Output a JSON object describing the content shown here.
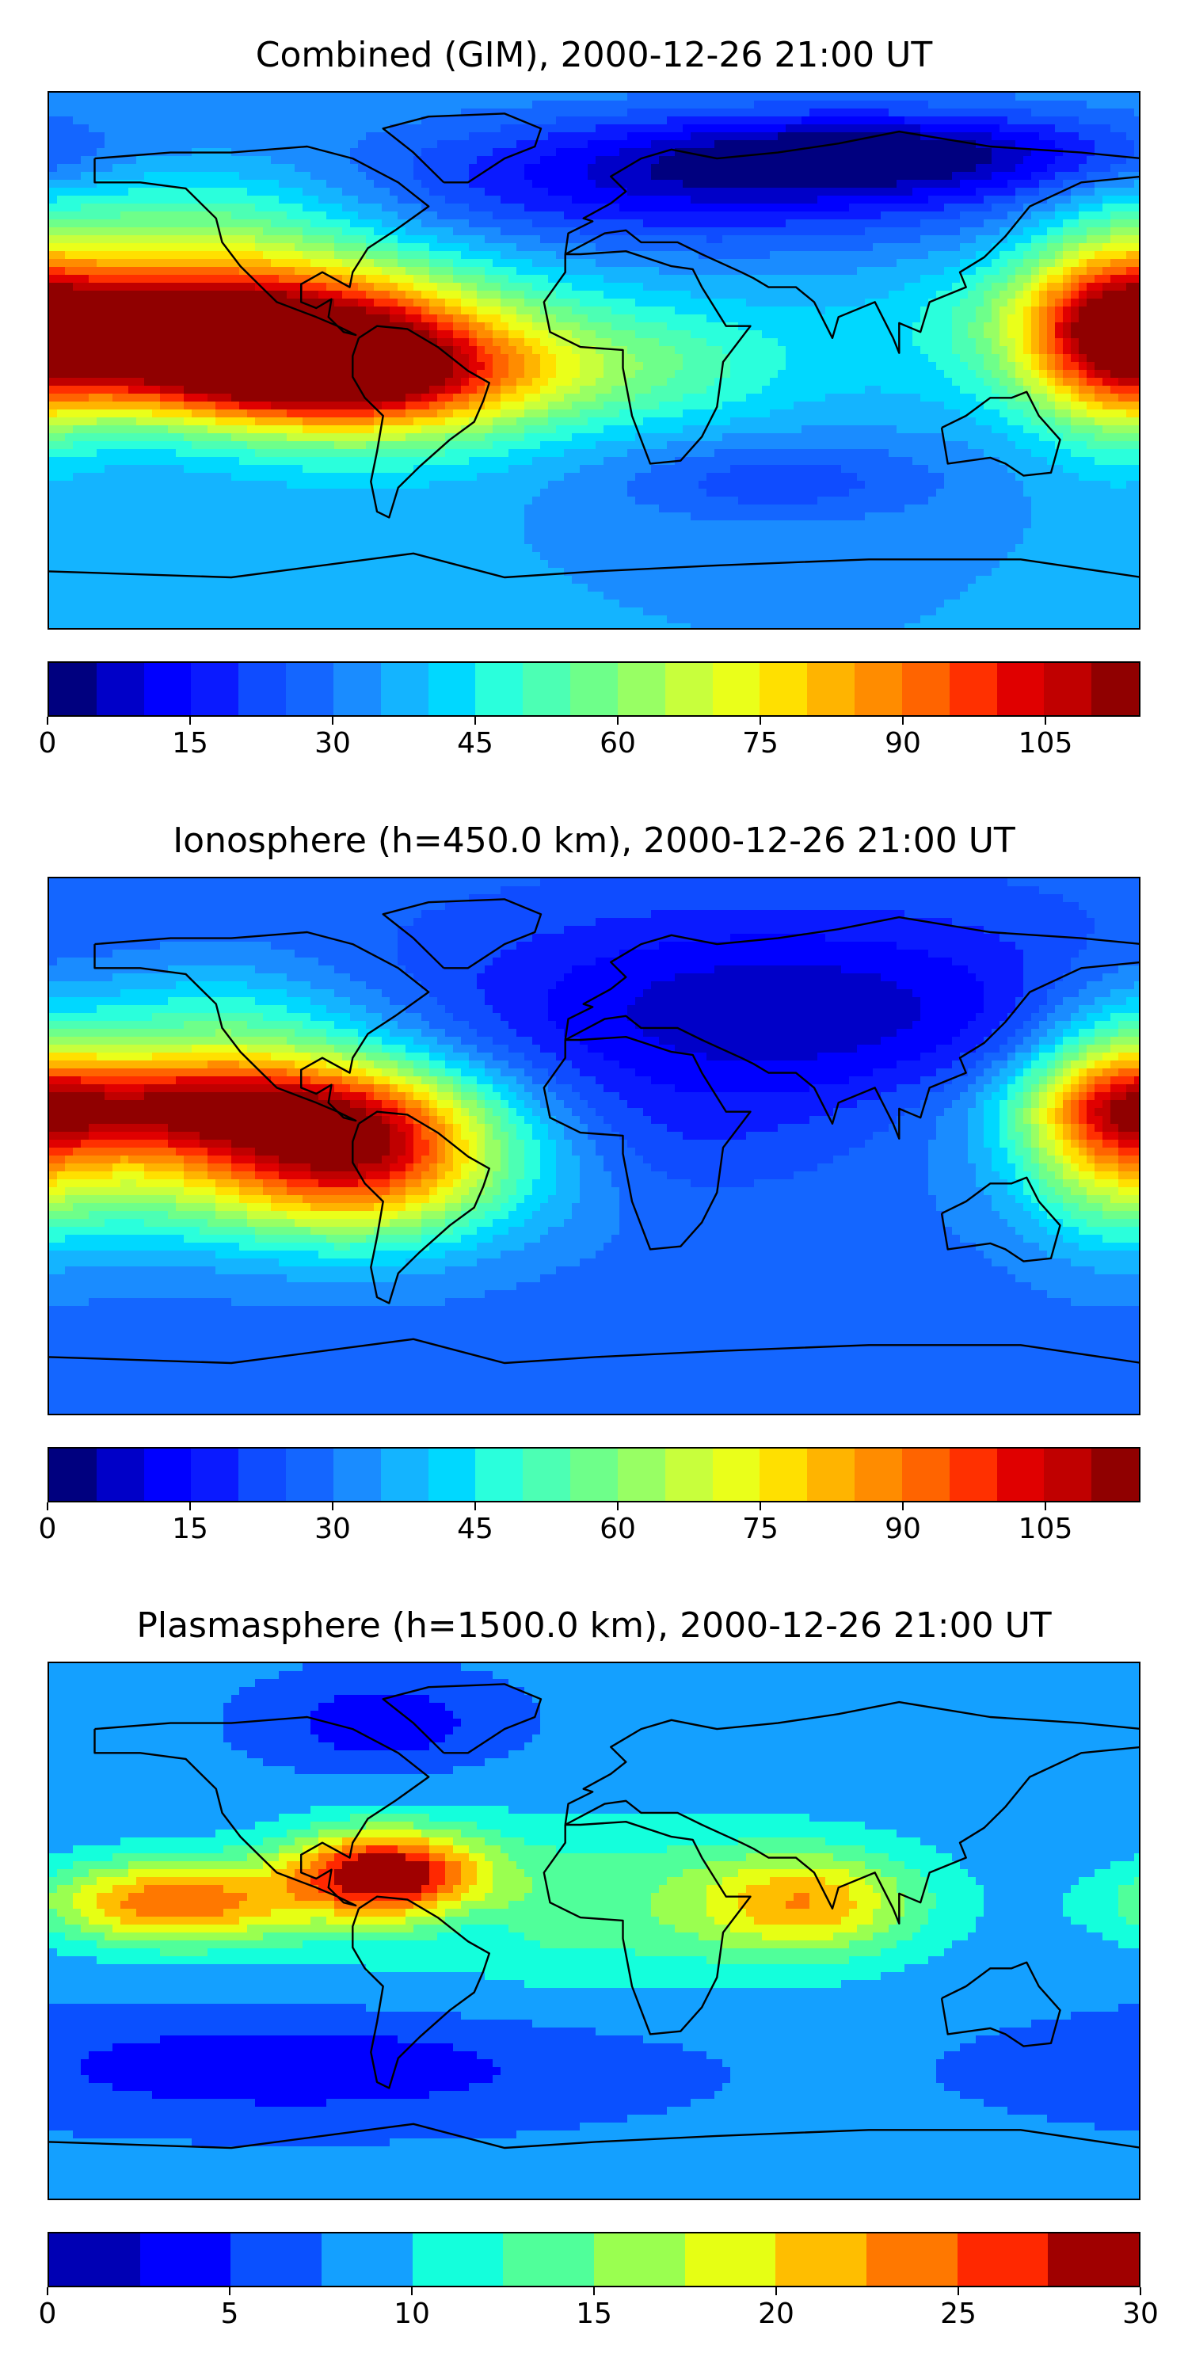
{
  "panels": [
    {
      "id": "combined",
      "title": "Combined (GIM), 2000-12-26 21:00 UT",
      "colorbar": {
        "min": 0,
        "max": 115,
        "step": 5,
        "tick_values": [
          0,
          15,
          30,
          45,
          60,
          75,
          90,
          105
        ],
        "tick_labels": [
          "0",
          "15",
          "30",
          "45",
          "60",
          "75",
          "90",
          "105"
        ],
        "colors": [
          "#00007f",
          "#0000c8",
          "#0000ff",
          "#0a1aff",
          "#0f4cff",
          "#1466ff",
          "#1a8cff",
          "#14b4ff",
          "#00d8ff",
          "#2affdc",
          "#4cffb4",
          "#6eff8a",
          "#98ff64",
          "#c8ff3c",
          "#eaff1a",
          "#ffe000",
          "#ffb400",
          "#ff8c00",
          "#ff6400",
          "#ff3000",
          "#e00000",
          "#c00000",
          "#900000"
        ]
      },
      "field": {
        "background_value": 35,
        "blobs": [
          {
            "lon": -140,
            "lat": 15,
            "value": 105,
            "spread_lon": 55,
            "spread_lat": 14
          },
          {
            "lon": -110,
            "lat": -5,
            "value": 88,
            "spread_lon": 60,
            "spread_lat": 12
          },
          {
            "lon": -75,
            "lat": 0,
            "value": 80,
            "spread_lon": 40,
            "spread_lat": 20
          },
          {
            "lon": 170,
            "lat": 10,
            "value": 75,
            "spread_lon": 20,
            "spread_lat": 25
          },
          {
            "lon": 30,
            "lat": 60,
            "value": 12,
            "spread_lon": 80,
            "spread_lat": 15
          },
          {
            "lon": 100,
            "lat": 70,
            "value": 10,
            "spread_lon": 60,
            "spread_lat": 10
          },
          {
            "lon": -130,
            "lat": 45,
            "value": 55,
            "spread_lon": 40,
            "spread_lat": 15
          },
          {
            "lon": 20,
            "lat": 0,
            "value": 50,
            "spread_lon": 40,
            "spread_lat": 15
          },
          {
            "lon": 60,
            "lat": -40,
            "value": 22,
            "spread_lon": 40,
            "spread_lat": 10
          }
        ]
      }
    },
    {
      "id": "ionosphere",
      "title": "Ionosphere  (h=450.0 km), 2000-12-26 21:00 UT",
      "colorbar": {
        "min": 0,
        "max": 115,
        "step": 5,
        "tick_values": [
          0,
          15,
          30,
          45,
          60,
          75,
          90,
          105
        ],
        "tick_labels": [
          "0",
          "15",
          "30",
          "45",
          "60",
          "75",
          "90",
          "105"
        ],
        "colors": [
          "#00007f",
          "#0000c8",
          "#0000ff",
          "#0a1aff",
          "#0f4cff",
          "#1466ff",
          "#1a8cff",
          "#14b4ff",
          "#00d8ff",
          "#2affdc",
          "#4cffb4",
          "#6eff8a",
          "#98ff64",
          "#c8ff3c",
          "#eaff1a",
          "#ffe000",
          "#ffb400",
          "#ff8c00",
          "#ff6400",
          "#ff3000",
          "#e00000",
          "#c00000",
          "#900000"
        ]
      },
      "field": {
        "background_value": 28,
        "blobs": [
          {
            "lon": -140,
            "lat": 15,
            "value": 85,
            "spread_lon": 50,
            "spread_lat": 12
          },
          {
            "lon": -110,
            "lat": -5,
            "value": 72,
            "spread_lon": 60,
            "spread_lat": 18
          },
          {
            "lon": -75,
            "lat": 0,
            "value": 70,
            "spread_lon": 30,
            "spread_lat": 20
          },
          {
            "lon": 170,
            "lat": 10,
            "value": 68,
            "spread_lon": 20,
            "spread_lat": 25
          },
          {
            "lon": 60,
            "lat": 45,
            "value": 6,
            "spread_lon": 80,
            "spread_lat": 25
          },
          {
            "lon": 20,
            "lat": 0,
            "value": 22,
            "spread_lon": 30,
            "spread_lat": 15
          },
          {
            "lon": -130,
            "lat": 40,
            "value": 50,
            "spread_lon": 40,
            "spread_lat": 15
          }
        ]
      }
    },
    {
      "id": "plasmasphere",
      "title": "Plasmasphere (h=1500.0 km), 2000-12-26 21:00 UT",
      "colorbar": {
        "min": 0,
        "max": 30,
        "step": 2.5,
        "tick_values": [
          0,
          5,
          10,
          15,
          20,
          25,
          30
        ],
        "tick_labels": [
          "0",
          "5",
          "10",
          "15",
          "20",
          "25",
          "30"
        ],
        "colors": [
          "#0000b4",
          "#0000ff",
          "#0a50ff",
          "#14a0ff",
          "#14ffdc",
          "#50ff9a",
          "#9aff50",
          "#e6ff14",
          "#ffbe00",
          "#ff7800",
          "#ff2800",
          "#a00000"
        ]
      },
      "field": {
        "background_value": 8,
        "blobs": [
          {
            "lon": -140,
            "lat": 10,
            "value": 24,
            "spread_lon": 30,
            "spread_lat": 10
          },
          {
            "lon": -70,
            "lat": 20,
            "value": 28,
            "spread_lon": 22,
            "spread_lat": 10
          },
          {
            "lon": 0,
            "lat": 10,
            "value": 14,
            "spread_lon": 70,
            "spread_lat": 20
          },
          {
            "lon": 70,
            "lat": 10,
            "value": 19,
            "spread_lon": 25,
            "spread_lat": 12
          },
          {
            "lon": -40,
            "lat": 0,
            "value": 6,
            "spread_lon": 10,
            "spread_lat": 8
          },
          {
            "lon": -100,
            "lat": -45,
            "value": 3,
            "spread_lon": 70,
            "spread_lat": 12
          },
          {
            "lon": -70,
            "lat": 70,
            "value": 3,
            "spread_lon": 25,
            "spread_lat": 10
          }
        ]
      }
    }
  ]
}
